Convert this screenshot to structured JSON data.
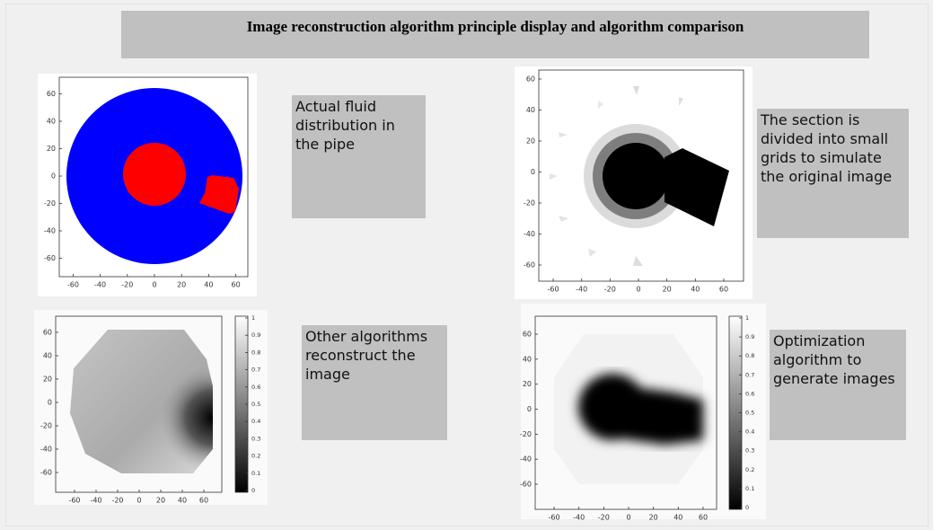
{
  "title": "Image reconstruction algorithm principle display and algorithm comparison",
  "panels": [
    {
      "label": "Actual fluid distribution in the pipe",
      "xticks": [
        -60,
        -40,
        -20,
        0,
        20,
        40,
        60
      ],
      "yticks": [
        60,
        40,
        20,
        0,
        -20,
        -40,
        -60
      ]
    },
    {
      "label": "The section is divided into small grids to simulate the original image",
      "xticks": [
        -60,
        -40,
        -20,
        0,
        20,
        40,
        60
      ],
      "yticks": [
        60,
        40,
        20,
        0,
        -20,
        -40,
        -60
      ]
    },
    {
      "label": "Other algorithms reconstruct the image",
      "xticks": [
        -60,
        -40,
        -20,
        0,
        20,
        40,
        60
      ],
      "yticks": [
        60,
        40,
        20,
        0,
        -20,
        -40,
        -60
      ],
      "colorbar_ticks": [
        1,
        0.9,
        0.8,
        0.7,
        0.6,
        0.5,
        0.4,
        0.3,
        0.2,
        0.1,
        0
      ]
    },
    {
      "label": "Optimization algorithm to generate images",
      "xticks": [
        -60,
        -40,
        -20,
        0,
        20,
        40,
        60
      ],
      "yticks": [
        60,
        40,
        20,
        0,
        -20,
        -40,
        -60
      ],
      "colorbar_ticks": [
        1,
        0.9,
        0.8,
        0.7,
        0.6,
        0.5,
        0.4,
        0.3,
        0.2,
        0.1,
        0
      ]
    }
  ]
}
